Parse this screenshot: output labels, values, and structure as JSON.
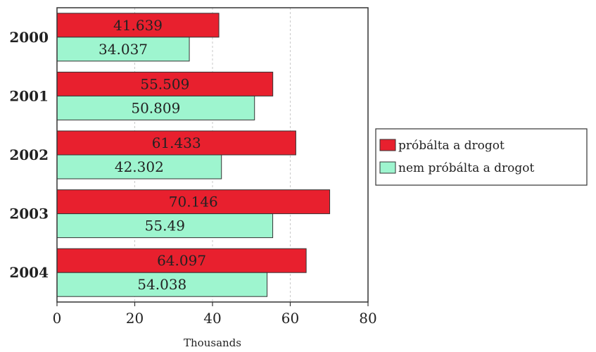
{
  "chart_data": {
    "type": "bar",
    "orientation": "horizontal",
    "categories": [
      "2000",
      "2001",
      "2002",
      "2003",
      "2004"
    ],
    "series": [
      {
        "name": "próbálta a drogot",
        "values": [
          41.639,
          55.509,
          61.433,
          70.146,
          64.097
        ],
        "labels": [
          "41.639",
          "55.509",
          "61.433",
          "70.146",
          "64.097"
        ],
        "color": "#e8202e"
      },
      {
        "name": "nem próbálta a drogot",
        "values": [
          34.037,
          50.809,
          42.302,
          55.49,
          54.038
        ],
        "labels": [
          "34.037",
          "50.809",
          "42.302",
          "55.49",
          "54.038"
        ],
        "color": "#9ef5cf"
      }
    ],
    "xlim": [
      0,
      80
    ],
    "xticks": [
      "0",
      "20",
      "40",
      "60",
      "80"
    ],
    "xlabel": "Thousands",
    "ylabel": "",
    "grid": "vertical dashed",
    "legend_position": "right"
  }
}
